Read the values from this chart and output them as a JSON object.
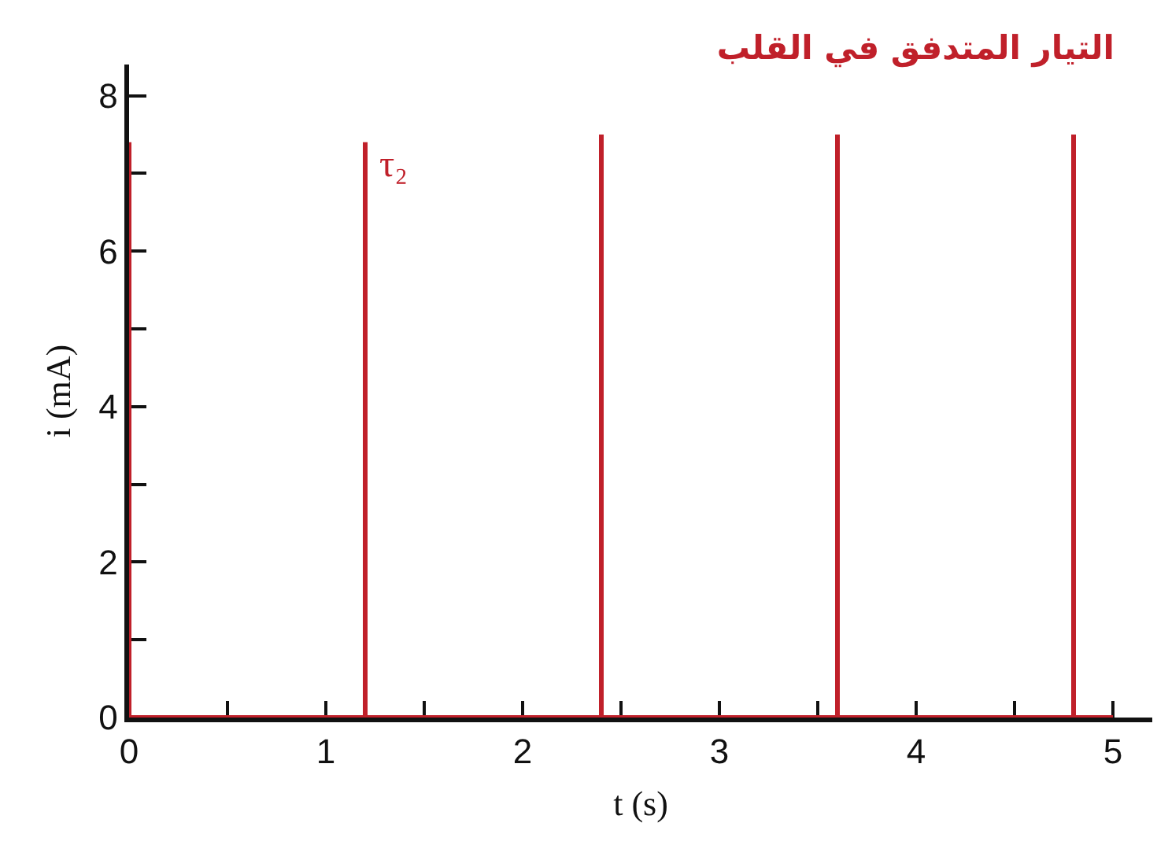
{
  "chart_data": {
    "type": "line",
    "title": "التيار المتدفق في القلب",
    "xlabel": "t (s)",
    "ylabel": "i (mA)",
    "annotations": [
      {
        "text": "τ₂",
        "x": 1.2,
        "y": 7.4
      }
    ],
    "x": [
      0,
      0,
      1.2,
      1.2,
      1.2,
      2.4,
      2.4,
      2.4,
      3.6,
      3.6,
      3.6,
      4.8,
      4.8,
      4.8,
      5.0
    ],
    "values": [
      7.4,
      0,
      0,
      7.4,
      0,
      0,
      7.5,
      0,
      0,
      7.5,
      0,
      0,
      7.5,
      0,
      0
    ],
    "color": "#c0202a",
    "line_style": "solid",
    "grid": false,
    "xlim": [
      0,
      5.2
    ],
    "ylim": [
      0,
      8.4
    ],
    "xticks": [
      0,
      {
        "value": 0.5,
        "label": null
      },
      1,
      {
        "value": 1.5,
        "label": null
      },
      2,
      {
        "value": 2.5,
        "label": null
      },
      3,
      {
        "value": 3.5,
        "label": null
      },
      4,
      {
        "value": 4.5,
        "label": null
      },
      5
    ],
    "yticks": [
      0,
      {
        "value": 1,
        "label": null
      },
      2,
      {
        "value": 3,
        "label": null
      },
      4,
      {
        "value": 5,
        "label": null
      },
      6,
      {
        "value": 7,
        "label": null
      },
      8
    ]
  }
}
